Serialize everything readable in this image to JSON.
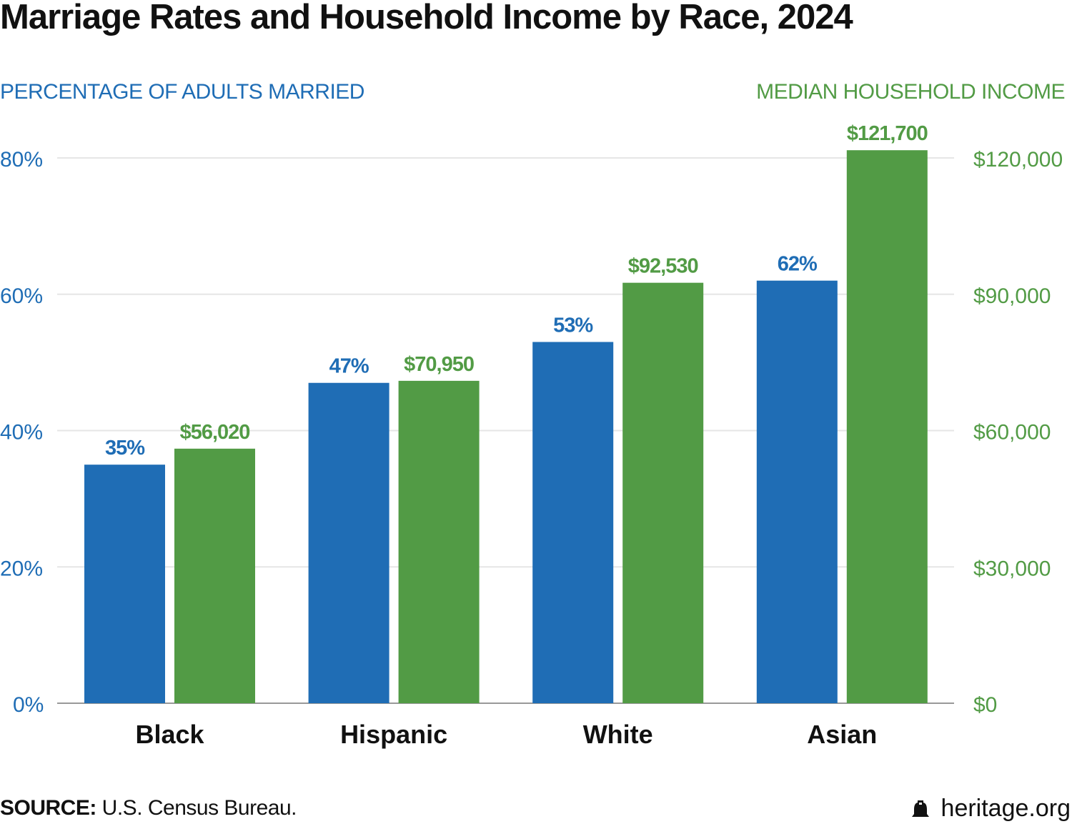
{
  "chart_data": {
    "type": "bar",
    "title": "Marriage Rates and Household Income by Race, 2024",
    "categories": [
      "Black",
      "Hispanic",
      "White",
      "Asian"
    ],
    "series": [
      {
        "name": "PERCENTAGE OF ADULTS MARRIED",
        "axis": "left",
        "color": "#1f6db5",
        "values": [
          35,
          47,
          53,
          62
        ],
        "labels": [
          "35%",
          "47%",
          "53%",
          "62%"
        ]
      },
      {
        "name": "MEDIAN HOUSEHOLD INCOME",
        "axis": "right",
        "color": "#529b45",
        "values": [
          56020,
          70950,
          92530,
          121700
        ],
        "labels": [
          "$56,020",
          "$70,950",
          "$92,530",
          "$121,700"
        ]
      }
    ],
    "left_axis": {
      "label": "PERCENTAGE OF ADULTS MARRIED",
      "ylim": [
        0,
        80
      ],
      "ticks": [
        0,
        20,
        40,
        60,
        80
      ],
      "tick_labels": [
        "0%",
        "20%",
        "40%",
        "60%",
        "80%"
      ]
    },
    "right_axis": {
      "label": "MEDIAN HOUSEHOLD INCOME",
      "ylim": [
        0,
        120000
      ],
      "ticks": [
        0,
        30000,
        60000,
        90000,
        120000
      ],
      "tick_labels": [
        "$0",
        "$30,000",
        "$60,000",
        "$90,000",
        "$120,000"
      ]
    },
    "grid": true
  },
  "footer": {
    "source_label": "SOURCE:",
    "source_text": " U.S. Census Bureau.",
    "brand": "heritage.org",
    "brand_icon": "liberty-bell-icon"
  }
}
